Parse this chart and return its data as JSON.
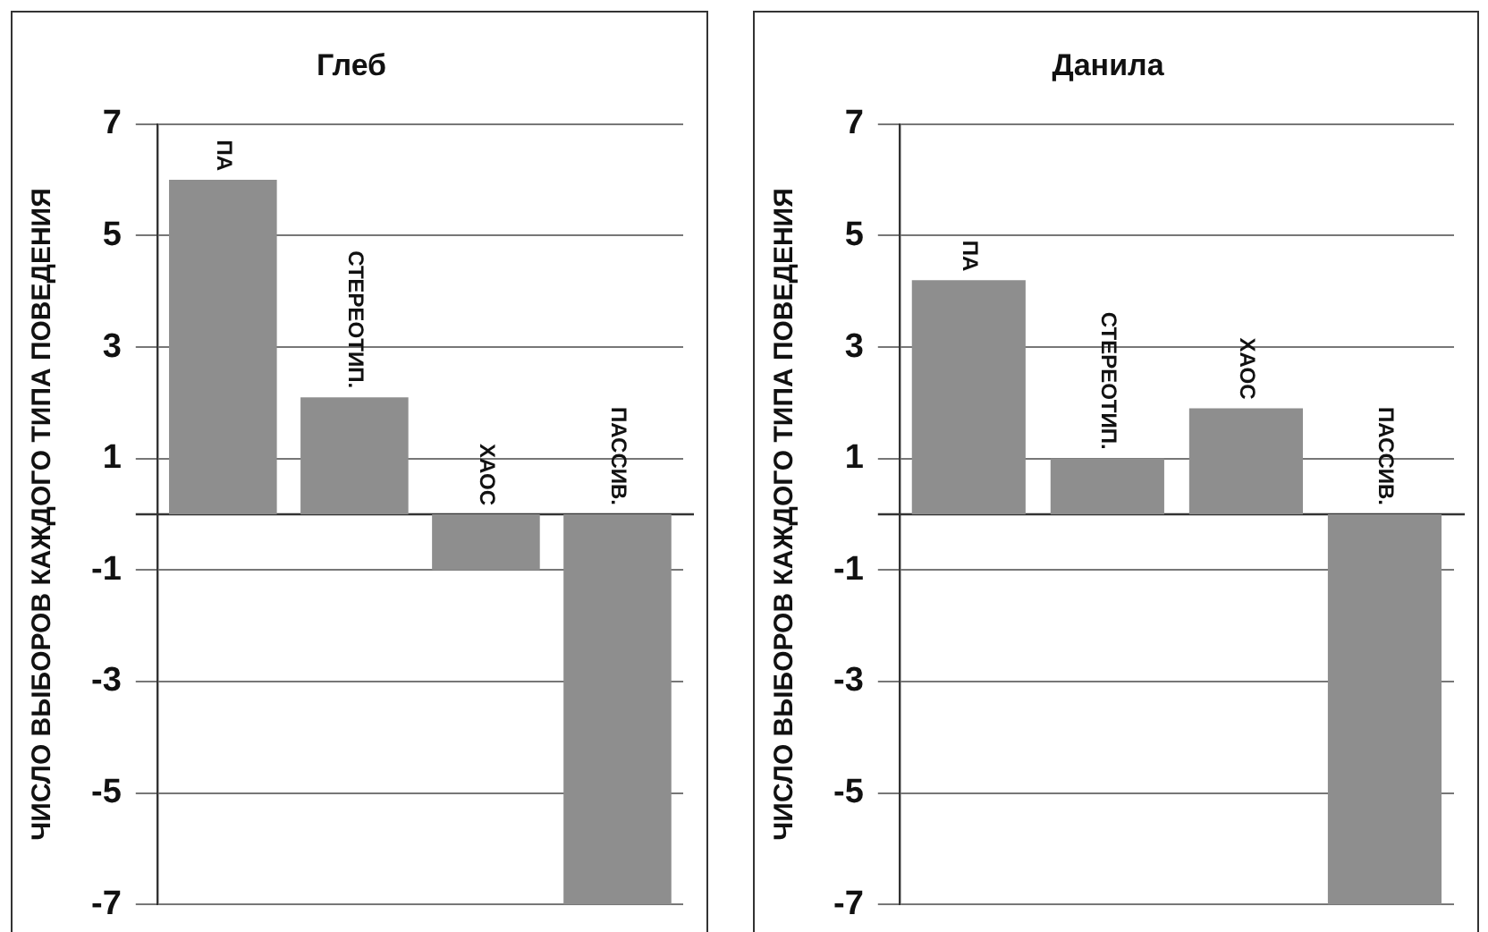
{
  "chart_data": [
    {
      "type": "bar",
      "title": "Глеб",
      "ylabel": "ЧИСЛО ВЫБОРОВ КАЖДОГО ТИПА ПОВЕДЕНИЯ",
      "categories": [
        "ПА",
        "СТЕРЕОТИП.",
        "ХАОС",
        "ПАССИВ."
      ],
      "values": [
        6,
        2.1,
        -1,
        -7
      ],
      "color": "#8e8e8e",
      "ylim": [
        -7,
        7
      ],
      "yticks": [
        -7,
        -5,
        -3,
        -1,
        1,
        3,
        5,
        7
      ],
      "grid": "y",
      "legend": false
    },
    {
      "type": "bar",
      "title": "Данила",
      "ylabel": "ЧИСЛО ВЫБОРОВ КАЖДОГО ТИПА ПОВЕДЕНИЯ",
      "categories": [
        "ПА",
        "СТЕРЕОТИП.",
        "ХАОС",
        "ПАССИВ."
      ],
      "values": [
        4.2,
        1,
        1.9,
        -7
      ],
      "color": "#8e8e8e",
      "ylim": [
        -7,
        7
      ],
      "yticks": [
        -7,
        -5,
        -3,
        -1,
        1,
        3,
        5,
        7
      ],
      "grid": "y",
      "legend": false
    }
  ]
}
